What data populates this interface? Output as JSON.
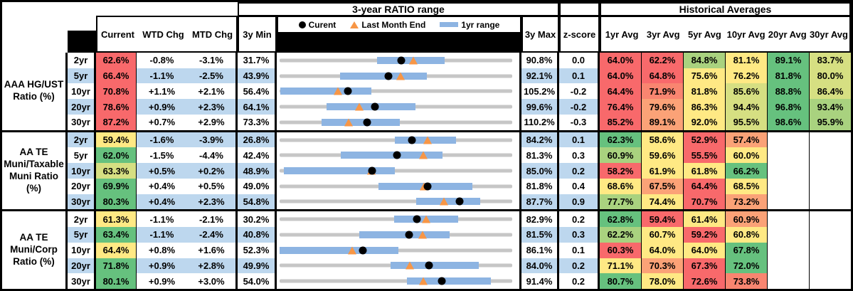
{
  "palette": {
    "red": "#F8696B",
    "salmon": "#F98570",
    "orange": "#FBA277",
    "yellow": "#FFE984",
    "yellowgreen": "#D6DF82",
    "lightgreen": "#A9D27F",
    "green": "#66C17E",
    "band_blue": "#BDD7EE",
    "white": "#FFFFFF",
    "bar_blue": "#8DB4E2",
    "track_gray": "#C6C6C6",
    "triangle_orange": "#F79646",
    "dot_black": "#000000"
  },
  "chart_data": {
    "type": "table",
    "title": "3-year RATIO range",
    "hist_title": "Historical Averages",
    "columns": [
      "Current",
      "WTD Chg",
      "MTD Chg",
      "3y Min",
      "3y Max",
      "z-score",
      "1yr Avg",
      "3yr Avg",
      "5yr Avg",
      "10yr Avg",
      "20yr Avg",
      "30yr Avg"
    ],
    "legend": {
      "current": "Curent",
      "last_month": "Last Month End",
      "range": "1yr range"
    },
    "groups": [
      {
        "label": "AAA HG/UST Ratio (%)",
        "rows": [
          {
            "tenor": "2yr",
            "current_c": "red",
            "wtd": "-0.8%",
            "mtd": "-3.1%",
            "z": "0.0",
            "chart": {
              "min": 31.7,
              "max": 90.8,
              "cur": 62.6,
              "lme": 65.7,
              "bar": [
                56.4,
                73.7
              ]
            },
            "avgs": [
              {
                "v": 64.0,
                "c": "red"
              },
              {
                "v": 62.2,
                "c": "red"
              },
              {
                "v": 84.8,
                "c": "lightgreen"
              },
              {
                "v": 81.1,
                "c": "yellow"
              },
              {
                "v": 89.1,
                "c": "green"
              },
              {
                "v": 83.7,
                "c": "yellowgreen"
              }
            ]
          },
          {
            "tenor": "5yr",
            "current_c": "red",
            "wtd": "-1.1%",
            "mtd": "-2.5%",
            "z": "0.1",
            "chart": {
              "min": 43.9,
              "max": 92.1,
              "cur": 66.4,
              "lme": 68.9,
              "bar": [
                56.4,
                74.4
              ]
            },
            "avgs": [
              {
                "v": 64.0,
                "c": "red"
              },
              {
                "v": 64.8,
                "c": "red"
              },
              {
                "v": 75.6,
                "c": "yellow"
              },
              {
                "v": 76.2,
                "c": "yellow"
              },
              {
                "v": 81.8,
                "c": "green"
              },
              {
                "v": 80.0,
                "c": "yellowgreen"
              }
            ]
          },
          {
            "tenor": "10yr",
            "current_c": "red",
            "wtd": "+1.1%",
            "mtd": "+2.1%",
            "z": "-0.2",
            "chart": {
              "min": 56.4,
              "max": 105.2,
              "cur": 70.8,
              "lme": 68.7,
              "bar": [
                56.5,
                75.6
              ]
            },
            "avgs": [
              {
                "v": 64.4,
                "c": "red"
              },
              {
                "v": 71.9,
                "c": "salmon"
              },
              {
                "v": 81.8,
                "c": "yellow"
              },
              {
                "v": 85.6,
                "c": "yellowgreen"
              },
              {
                "v": 88.8,
                "c": "green"
              },
              {
                "v": 86.4,
                "c": "yellowgreen"
              }
            ]
          },
          {
            "tenor": "20yr",
            "current_c": "red",
            "wtd": "+0.9%",
            "mtd": "+2.3%",
            "z": "-0.2",
            "chart": {
              "min": 64.1,
              "max": 99.6,
              "cur": 78.6,
              "lme": 76.3,
              "bar": [
                71.3,
                84.8
              ]
            },
            "avgs": [
              {
                "v": 76.4,
                "c": "red"
              },
              {
                "v": 79.6,
                "c": "orange"
              },
              {
                "v": 86.3,
                "c": "yellow"
              },
              {
                "v": 94.4,
                "c": "yellowgreen"
              },
              {
                "v": 96.8,
                "c": "green"
              },
              {
                "v": 93.4,
                "c": "lightgreen"
              }
            ]
          },
          {
            "tenor": "30yr",
            "current_c": "red",
            "wtd": "+0.7%",
            "mtd": "+2.9%",
            "z": "-0.3",
            "chart": {
              "min": 73.3,
              "max": 110.2,
              "cur": 87.2,
              "lme": 84.3,
              "bar": [
                80.0,
                92.4
              ]
            },
            "avgs": [
              {
                "v": 85.2,
                "c": "red"
              },
              {
                "v": 89.1,
                "c": "orange"
              },
              {
                "v": 92.0,
                "c": "yellow"
              },
              {
                "v": 95.5,
                "c": "yellowgreen"
              },
              {
                "v": 98.6,
                "c": "green"
              },
              {
                "v": 95.9,
                "c": "lightgreen"
              }
            ]
          }
        ]
      },
      {
        "label": "AA TE Muni/Taxable Muni Ratio (%)",
        "rows": [
          {
            "tenor": "2yr",
            "current_c": "yellow",
            "wtd": "-1.6%",
            "mtd": "-3.9%",
            "z": "0.1",
            "chart": {
              "min": 26.8,
              "max": 84.2,
              "cur": 59.4,
              "lme": 63.3,
              "bar": [
                55.2,
                70.4
              ]
            },
            "avgs": [
              {
                "v": 62.3,
                "c": "green"
              },
              {
                "v": 58.6,
                "c": "yellow"
              },
              {
                "v": 52.9,
                "c": "red"
              },
              {
                "v": 57.4,
                "c": "orange"
              },
              null,
              null
            ]
          },
          {
            "tenor": "5yr",
            "current_c": "green",
            "wtd": "-1.5%",
            "mtd": "-4.4%",
            "z": "0.3",
            "chart": {
              "min": 42.4,
              "max": 81.3,
              "cur": 62.0,
              "lme": 66.4,
              "bar": [
                52.6,
                69.6
              ]
            },
            "avgs": [
              {
                "v": 60.9,
                "c": "lightgreen"
              },
              {
                "v": 59.6,
                "c": "yellow"
              },
              {
                "v": 55.5,
                "c": "red"
              },
              {
                "v": 60.0,
                "c": "yellow"
              },
              null,
              null
            ]
          },
          {
            "tenor": "10yr",
            "current_c": "yellowgreen",
            "wtd": "+0.5%",
            "mtd": "+0.2%",
            "z": "0.2",
            "chart": {
              "min": 48.9,
              "max": 85.0,
              "cur": 63.3,
              "lme": 63.1,
              "bar": [
                49.6,
                66.8
              ]
            },
            "avgs": [
              {
                "v": 58.2,
                "c": "red"
              },
              {
                "v": 61.9,
                "c": "yellow"
              },
              {
                "v": 61.8,
                "c": "yellow"
              },
              {
                "v": 66.2,
                "c": "green"
              },
              null,
              null
            ]
          },
          {
            "tenor": "20yr",
            "current_c": "green",
            "wtd": "+0.4%",
            "mtd": "+0.5%",
            "z": "0.4",
            "chart": {
              "min": 49.0,
              "max": 81.8,
              "cur": 69.9,
              "lme": 69.4,
              "bar": [
                62.9,
                76.2
              ]
            },
            "avgs": [
              {
                "v": 68.6,
                "c": "yellow"
              },
              {
                "v": 67.5,
                "c": "orange"
              },
              {
                "v": 64.4,
                "c": "red"
              },
              {
                "v": 68.5,
                "c": "yellow"
              },
              null,
              null
            ]
          },
          {
            "tenor": "30yr",
            "current_c": "green",
            "wtd": "+0.4%",
            "mtd": "+2.3%",
            "z": "0.9",
            "chart": {
              "min": 54.8,
              "max": 87.7,
              "cur": 80.3,
              "lme": 78.0,
              "bar": [
                74.1,
                83.2
              ]
            },
            "avgs": [
              {
                "v": 77.7,
                "c": "lightgreen"
              },
              {
                "v": 74.4,
                "c": "yellow"
              },
              {
                "v": 70.7,
                "c": "red"
              },
              {
                "v": 73.2,
                "c": "orange"
              },
              null,
              null
            ]
          }
        ]
      },
      {
        "label": "AA TE Muni/Corp Ratio (%)",
        "rows": [
          {
            "tenor": "2yr",
            "current_c": "yellow",
            "wtd": "-1.1%",
            "mtd": "-2.1%",
            "z": "0.2",
            "chart": {
              "min": 30.2,
              "max": 82.9,
              "cur": 61.3,
              "lme": 63.4,
              "bar": [
                56.2,
                70.6
              ]
            },
            "avgs": [
              {
                "v": 62.8,
                "c": "green"
              },
              {
                "v": 59.4,
                "c": "red"
              },
              {
                "v": 61.4,
                "c": "yellow"
              },
              {
                "v": 60.9,
                "c": "orange"
              },
              null,
              null
            ]
          },
          {
            "tenor": "5yr",
            "current_c": "green",
            "wtd": "-1.1%",
            "mtd": "-2.4%",
            "z": "0.3",
            "chart": {
              "min": 40.8,
              "max": 81.5,
              "cur": 63.4,
              "lme": 65.8,
              "bar": [
                54.7,
                70.5
              ]
            },
            "avgs": [
              {
                "v": 62.2,
                "c": "lightgreen"
              },
              {
                "v": 60.7,
                "c": "yellow"
              },
              {
                "v": 59.2,
                "c": "red"
              },
              {
                "v": 60.8,
                "c": "yellow"
              },
              null,
              null
            ]
          },
          {
            "tenor": "10yr",
            "current_c": "yellow",
            "wtd": "+0.8%",
            "mtd": "+1.6%",
            "z": "0.1",
            "chart": {
              "min": 52.3,
              "max": 86.1,
              "cur": 64.4,
              "lme": 62.8,
              "bar": [
                52.3,
                69.6
              ]
            },
            "avgs": [
              {
                "v": 60.3,
                "c": "red"
              },
              {
                "v": 64.0,
                "c": "yellow"
              },
              {
                "v": 64.0,
                "c": "yellow"
              },
              {
                "v": 67.8,
                "c": "green"
              },
              null,
              null
            ]
          },
          {
            "tenor": "20yr",
            "current_c": "green",
            "wtd": "+0.9%",
            "mtd": "+2.8%",
            "z": "0.2",
            "chart": {
              "min": 49.9,
              "max": 84.0,
              "cur": 71.8,
              "lme": 69.0,
              "bar": [
                66.2,
                79.1
              ]
            },
            "avgs": [
              {
                "v": 71.1,
                "c": "yellow"
              },
              {
                "v": 70.3,
                "c": "orange"
              },
              {
                "v": 67.3,
                "c": "red"
              },
              {
                "v": 72.0,
                "c": "green"
              },
              null,
              null
            ]
          },
          {
            "tenor": "30yr",
            "current_c": "green",
            "wtd": "+0.9%",
            "mtd": "+3.0%",
            "z": "0.2",
            "chart": {
              "min": 54.0,
              "max": 91.4,
              "cur": 80.1,
              "lme": 77.1,
              "bar": [
                74.5,
                88.0
              ]
            },
            "avgs": [
              {
                "v": 80.7,
                "c": "green"
              },
              {
                "v": 78.0,
                "c": "yellow"
              },
              {
                "v": 72.6,
                "c": "red"
              },
              {
                "v": 73.8,
                "c": "salmon"
              },
              null,
              null
            ]
          }
        ]
      }
    ]
  }
}
